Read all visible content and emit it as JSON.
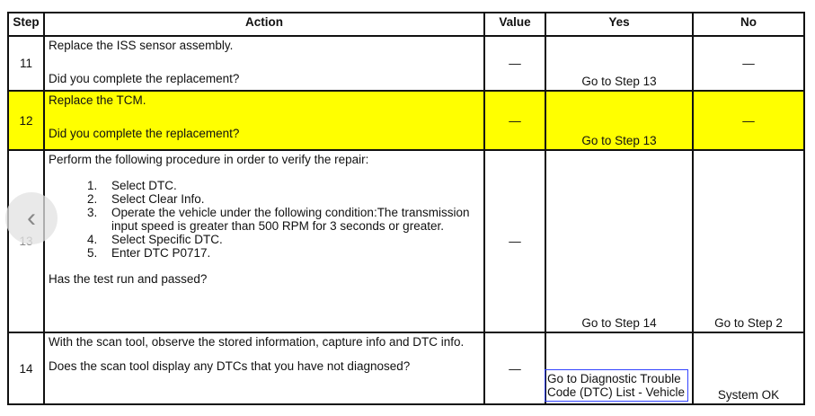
{
  "headers": [
    "Step",
    "Action",
    "Value",
    "Yes",
    "No"
  ],
  "rows": [
    {
      "step": "11",
      "action_line1": "Replace the ISS sensor assembly.",
      "question": "Did you complete the replacement?",
      "value": "—",
      "yes": "Go to Step 13",
      "no": "—"
    },
    {
      "step": "12",
      "action_line1": "Replace the TCM.",
      "question": "Did you complete the replacement?",
      "value": "—",
      "yes": "Go to Step 13",
      "no": "—",
      "highlight": "#ffff00"
    },
    {
      "step": "13",
      "action_line1": "Perform the following procedure in order to verify the repair:",
      "steps": [
        "Select DTC.",
        "Select Clear Info.",
        "Operate the vehicle under the following condition:The transmission input speed is greater than 500 RPM for 3 seconds or greater.",
        "Select Specific DTC.",
        "Enter DTC P0717."
      ],
      "question": "Has the test run and passed?",
      "value": "—",
      "yes": "Go to Step 14",
      "no": "Go to Step 2"
    },
    {
      "step": "14",
      "action_line1": "With the scan tool, observe the stored information, capture info and DTC info.",
      "question": "Does the scan tool display any DTCs that you have not diagnosed?",
      "value": "—",
      "yes": "Go to Diagnostic Trouble Code (DTC) List - Vehicle",
      "no": "System OK"
    }
  ],
  "nav": {
    "icon": "chevron-left-icon"
  }
}
